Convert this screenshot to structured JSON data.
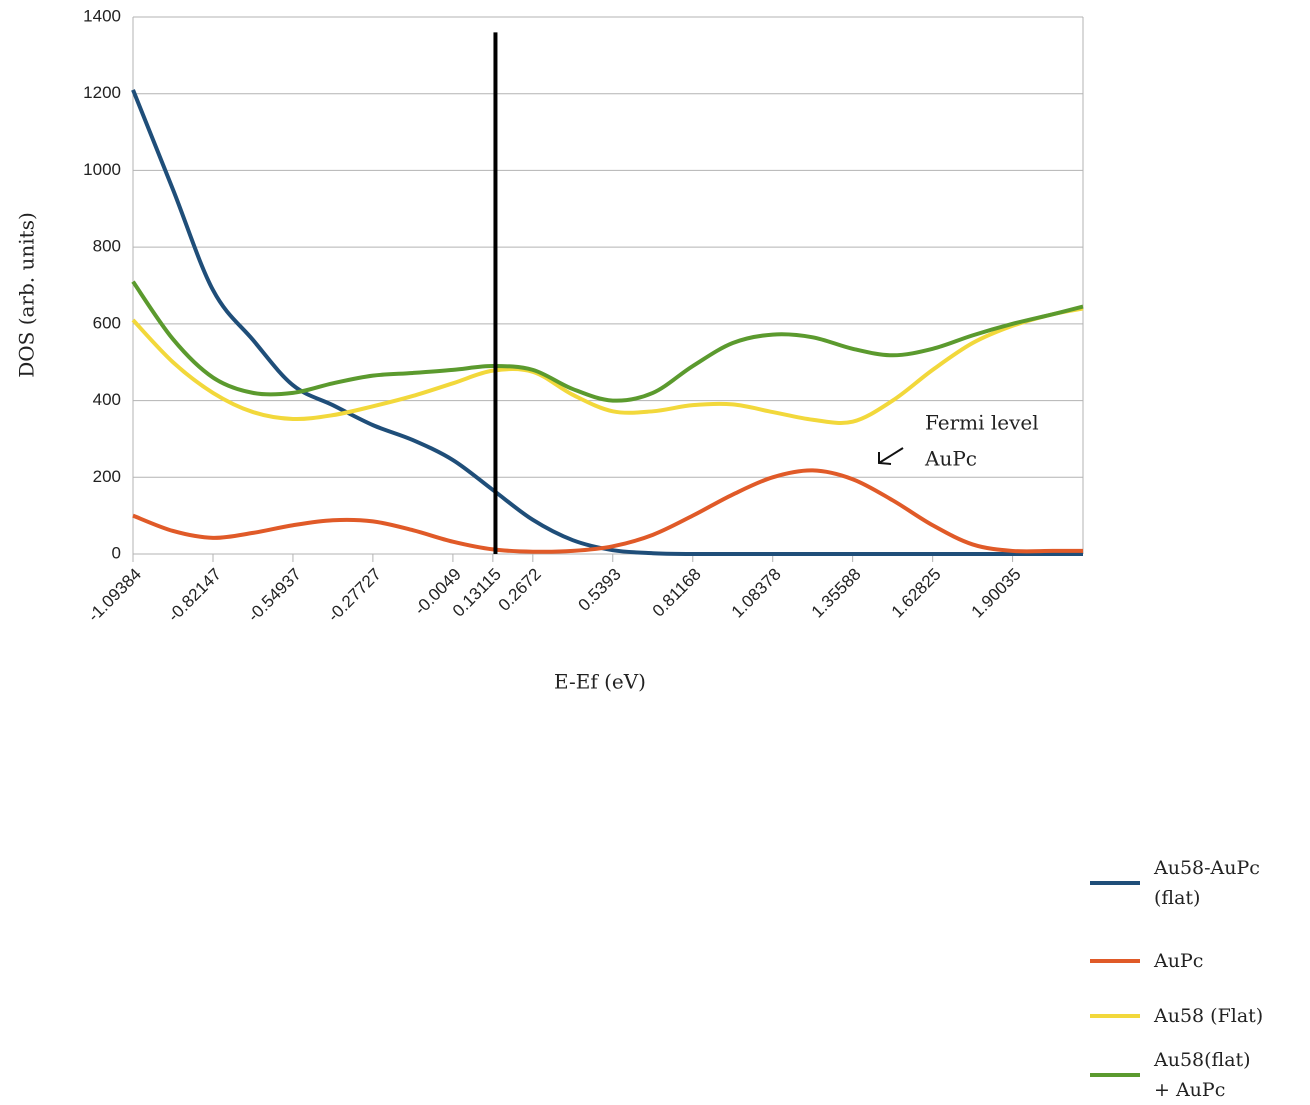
{
  "chart_data": {
    "type": "line",
    "ylabel": "DOS (arb. units)",
    "xlabel": "E-Ef (eV)",
    "x": [
      -1.09384,
      -0.95766,
      -0.82147,
      -0.68542,
      -0.54937,
      -0.41332,
      -0.27727,
      -0.14122,
      -0.0049,
      0.13115,
      0.2672,
      0.40325,
      0.5393,
      0.67549,
      0.81168,
      0.94773,
      1.08378,
      1.21983,
      1.35588,
      1.49207,
      1.62825,
      1.7643,
      1.90035,
      2.0364,
      2.14
    ],
    "series": [
      {
        "name": "Au58-AuPc (flat)",
        "color": "#1f4e79",
        "values": [
          1210,
          950,
          688,
          558,
          440,
          388,
          336,
          297,
          245,
          167,
          89,
          36,
          10,
          2,
          0,
          0,
          0,
          0,
          0,
          0,
          0,
          0,
          0,
          0,
          0
        ]
      },
      {
        "name": "AuPc",
        "color": "#e05a28",
        "values": [
          100,
          60,
          42,
          55,
          75,
          88,
          85,
          62,
          32,
          12,
          6,
          8,
          20,
          50,
          100,
          155,
          200,
          218,
          195,
          140,
          75,
          25,
          8,
          8,
          8
        ]
      },
      {
        "name": "Au58 (Flat)",
        "color": "#f2d83b",
        "values": [
          610,
          500,
          420,
          370,
          352,
          362,
          385,
          412,
          445,
          478,
          475,
          415,
          372,
          372,
          388,
          390,
          370,
          350,
          345,
          400,
          480,
          550,
          595,
          625,
          640
        ]
      },
      {
        "name": "Au58(flat) + AuPc",
        "color": "#5b9a2e",
        "values": [
          710,
          560,
          460,
          420,
          420,
          445,
          465,
          472,
          480,
          490,
          480,
          430,
          400,
          420,
          490,
          550,
          572,
          565,
          535,
          518,
          535,
          570,
          600,
          625,
          645
        ]
      }
    ],
    "vline": {
      "x": 0.14,
      "ymax": 1360,
      "color": "#000000"
    },
    "annotation": [
      "Fermi level",
      "AuPc"
    ],
    "xlim": [
      -1.09384,
      2.14
    ],
    "xticks": [
      -1.09384,
      -0.82147,
      -0.54937,
      -0.27727,
      -0.0049,
      0.13115,
      0.2672,
      0.5393,
      0.81168,
      1.08378,
      1.35588,
      1.62825,
      1.90035
    ],
    "ylim": [
      0,
      1400
    ],
    "yticks": [
      0,
      200,
      400,
      600,
      800,
      1000,
      1200,
      1400
    ],
    "grid": true
  }
}
